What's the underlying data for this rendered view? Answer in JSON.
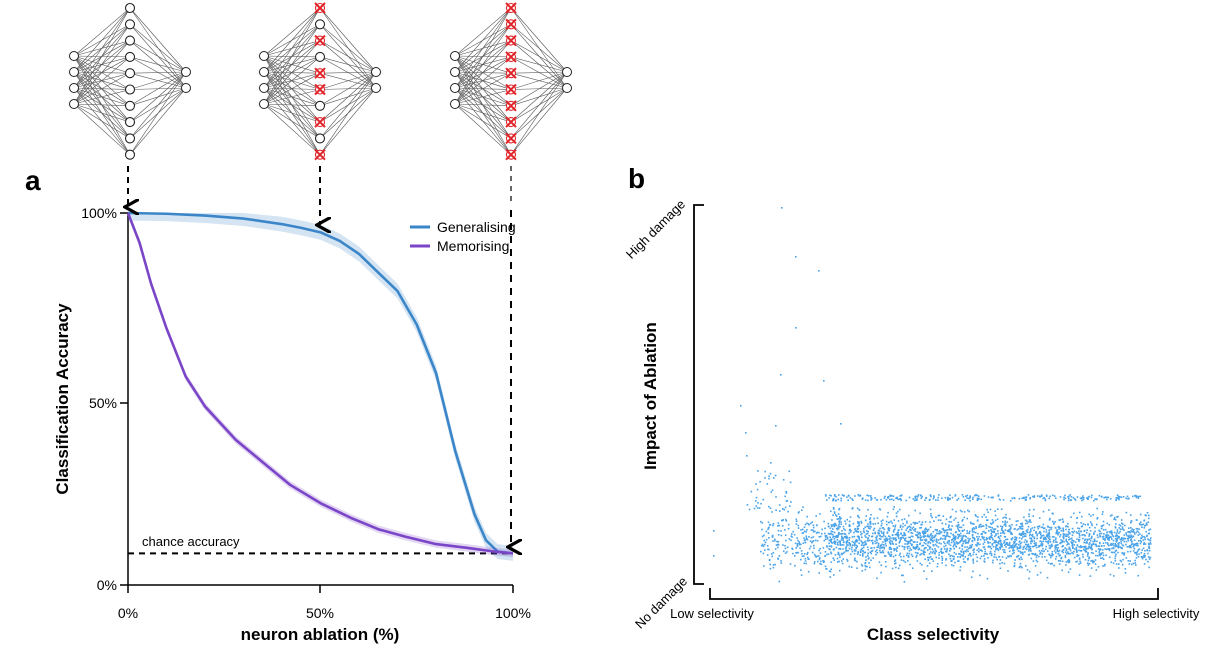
{
  "chart_data": [
    {
      "panel": "a",
      "type": "line",
      "xlabel": "neuron ablation (%)",
      "ylabel": "Classification Accuracy",
      "xlim": [
        0,
        100
      ],
      "ylim": [
        0,
        100
      ],
      "xticks": [
        "0%",
        "50%",
        "100%"
      ],
      "yticks": [
        "0%",
        "50%",
        "100%"
      ],
      "legend_position": "top-right",
      "chance_label": "chance accuracy",
      "chance_level": 8.5,
      "series": [
        {
          "name": "Generalising",
          "color": "#3a86c8",
          "x": [
            0,
            10,
            20,
            30,
            40,
            45,
            50,
            55,
            60,
            65,
            70,
            75,
            80,
            85,
            90,
            93,
            96,
            100
          ],
          "y": [
            100,
            99.8,
            99.3,
            98.5,
            97,
            96,
            94.8,
            92.5,
            89,
            84,
            79,
            70,
            57,
            36,
            19,
            12,
            9,
            8.5
          ],
          "band": 2
        },
        {
          "name": "Memorising",
          "color": "#7b45c8",
          "x": [
            0,
            3,
            6,
            10,
            15,
            20,
            28,
            35,
            42,
            50,
            58,
            65,
            72,
            80,
            88,
            95,
            100
          ],
          "y": [
            100,
            92,
            81,
            69,
            56,
            48,
            39,
            33,
            27,
            22,
            18,
            15,
            13,
            11,
            10,
            9,
            8.5
          ],
          "band": 1
        }
      ]
    },
    {
      "panel": "b",
      "type": "scatter",
      "xlabel": "Class selectivity",
      "ylabel": "Impact of Ablation",
      "xtick_low": "Low selectivity",
      "xtick_high": "High selectivity",
      "ytick_low": "No damage",
      "ytick_high": "High damage",
      "color": "#4aa3e8",
      "xlim": [
        0,
        1
      ],
      "ylim": [
        0,
        1
      ]
    }
  ]
}
